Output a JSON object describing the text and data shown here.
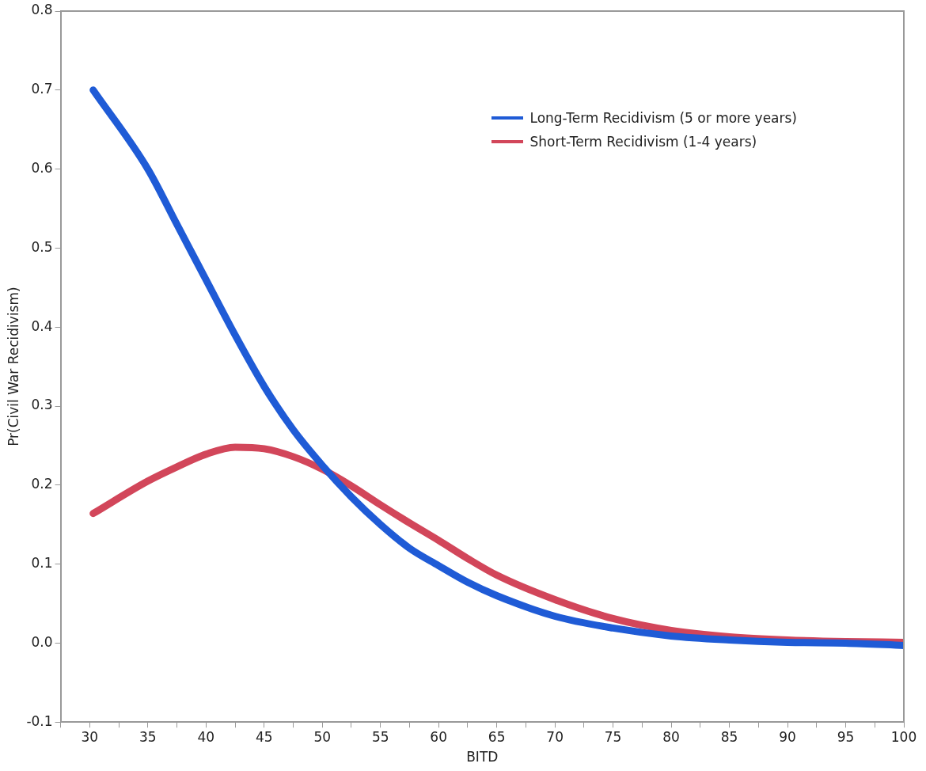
{
  "chart_data": {
    "type": "line",
    "xlabel": "BITD",
    "ylabel": "Pr(Civil War Recidivism)",
    "xlim": [
      27.5,
      100
    ],
    "ylim": [
      -0.1,
      0.8
    ],
    "xticks": [
      {
        "value": 27.5,
        "label": null
      },
      30,
      {
        "value": 32.5,
        "label": null
      },
      35,
      {
        "value": 37.5,
        "label": null
      },
      40,
      {
        "value": 42.5,
        "label": null
      },
      45,
      {
        "value": 47.5,
        "label": null
      },
      50,
      {
        "value": 52.5,
        "label": null
      },
      55,
      {
        "value": 57.5,
        "label": null
      },
      60,
      {
        "value": 62.5,
        "label": null
      },
      65,
      {
        "value": 67.5,
        "label": null
      },
      70,
      {
        "value": 72.5,
        "label": null
      },
      75,
      {
        "value": 77.5,
        "label": null
      },
      80,
      {
        "value": 82.5,
        "label": null
      },
      85,
      {
        "value": 87.5,
        "label": null
      },
      90,
      {
        "value": 92.5,
        "label": null
      },
      95,
      {
        "value": 97.5,
        "label": null
      },
      100
    ],
    "yticks": [
      {
        "value": -0.1,
        "label": "-0.1"
      },
      {
        "value": 0,
        "label": "0.0"
      },
      0.1,
      0.2,
      0.3,
      0.4,
      0.5,
      0.6,
      0.7,
      0.8
    ],
    "x": [
      30.3,
      35,
      37.5,
      40,
      42.5,
      45,
      47.5,
      50,
      52.5,
      55,
      57.5,
      60,
      62.5,
      65,
      70,
      75,
      80,
      85,
      90,
      95,
      100
    ],
    "series": [
      {
        "name": "Long-Term Recidivism (5 or more years)",
        "color": "#1f5bd6",
        "values": [
          0.7,
          0.6,
          0.53,
          0.46,
          0.39,
          0.325,
          0.27,
          0.225,
          0.185,
          0.15,
          0.12,
          0.098,
          0.077,
          0.06,
          0.034,
          0.019,
          0.009,
          0.004,
          0.001,
          0.0,
          -0.003
        ]
      },
      {
        "name": "Short-Term Recidivism (1-4 years)",
        "color": "#d2465a",
        "values": [
          0.164,
          0.205,
          0.223,
          0.239,
          0.248,
          0.246,
          0.236,
          0.22,
          0.199,
          0.175,
          0.152,
          0.13,
          0.107,
          0.086,
          0.055,
          0.031,
          0.016,
          0.008,
          0.004,
          0.002,
          0.001
        ]
      }
    ],
    "grid": false,
    "legend": "top right",
    "marker": "none",
    "line_style": "solid"
  }
}
